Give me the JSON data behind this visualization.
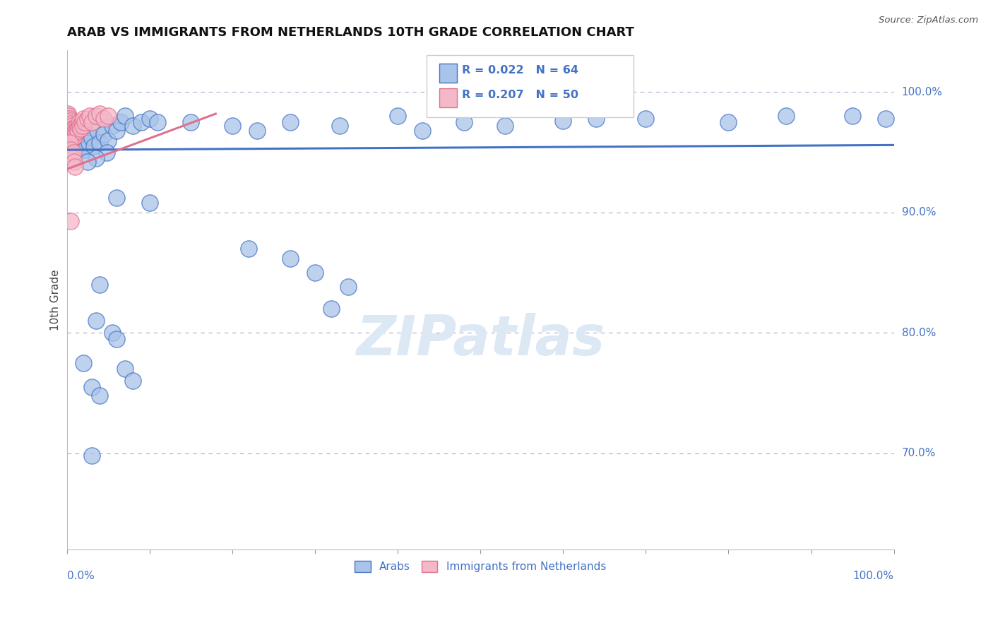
{
  "title": "ARAB VS IMMIGRANTS FROM NETHERLANDS 10TH GRADE CORRELATION CHART",
  "source": "Source: ZipAtlas.com",
  "ylabel": "10th Grade",
  "legend_label_blue": "Arabs",
  "legend_label_pink": "Immigrants from Netherlands",
  "blue_fill": "#a8c4e8",
  "blue_edge": "#4472c4",
  "pink_fill": "#f4b8c8",
  "pink_edge": "#e07090",
  "blue_line": "#4472c4",
  "pink_line": "#e07090",
  "grid_color": "#aaaacc",
  "label_color": "#4472c4",
  "watermark_color": "#dde8f5",
  "blue_scatter": [
    [
      0.001,
      0.98
    ],
    [
      0.002,
      0.975
    ],
    [
      0.002,
      0.972
    ],
    [
      0.003,
      0.978
    ],
    [
      0.003,
      0.97
    ],
    [
      0.004,
      0.975
    ],
    [
      0.004,
      0.968
    ],
    [
      0.005,
      0.972
    ],
    [
      0.005,
      0.965
    ],
    [
      0.006,
      0.97
    ],
    [
      0.006,
      0.963
    ],
    [
      0.007,
      0.968
    ],
    [
      0.007,
      0.96
    ],
    [
      0.008,
      0.972
    ],
    [
      0.008,
      0.958
    ],
    [
      0.009,
      0.966
    ],
    [
      0.01,
      0.962
    ],
    [
      0.011,
      0.958
    ],
    [
      0.012,
      0.965
    ],
    [
      0.013,
      0.955
    ],
    [
      0.014,
      0.96
    ],
    [
      0.015,
      0.968
    ],
    [
      0.015,
      0.955
    ],
    [
      0.016,
      0.962
    ],
    [
      0.017,
      0.958
    ],
    [
      0.018,
      0.97
    ],
    [
      0.019,
      0.955
    ],
    [
      0.02,
      0.965
    ],
    [
      0.021,
      0.958
    ],
    [
      0.022,
      0.952
    ],
    [
      0.025,
      0.965
    ],
    [
      0.027,
      0.958
    ],
    [
      0.03,
      0.962
    ],
    [
      0.033,
      0.955
    ],
    [
      0.037,
      0.968
    ],
    [
      0.04,
      0.958
    ],
    [
      0.045,
      0.965
    ],
    [
      0.05,
      0.96
    ],
    [
      0.055,
      0.972
    ],
    [
      0.06,
      0.968
    ],
    [
      0.065,
      0.975
    ],
    [
      0.07,
      0.98
    ],
    [
      0.08,
      0.972
    ],
    [
      0.09,
      0.975
    ],
    [
      0.1,
      0.978
    ],
    [
      0.11,
      0.975
    ],
    [
      0.15,
      0.975
    ],
    [
      0.2,
      0.972
    ],
    [
      0.23,
      0.968
    ],
    [
      0.27,
      0.975
    ],
    [
      0.33,
      0.972
    ],
    [
      0.4,
      0.98
    ],
    [
      0.43,
      0.968
    ],
    [
      0.48,
      0.975
    ],
    [
      0.53,
      0.972
    ],
    [
      0.6,
      0.976
    ],
    [
      0.64,
      0.978
    ],
    [
      0.7,
      0.978
    ],
    [
      0.8,
      0.975
    ],
    [
      0.87,
      0.98
    ],
    [
      0.95,
      0.98
    ],
    [
      0.99,
      0.978
    ],
    [
      0.048,
      0.95
    ],
    [
      0.035,
      0.945
    ],
    [
      0.025,
      0.942
    ],
    [
      0.06,
      0.912
    ],
    [
      0.1,
      0.908
    ],
    [
      0.22,
      0.87
    ],
    [
      0.27,
      0.862
    ],
    [
      0.3,
      0.85
    ],
    [
      0.34,
      0.838
    ],
    [
      0.32,
      0.82
    ],
    [
      0.04,
      0.84
    ],
    [
      0.035,
      0.81
    ],
    [
      0.055,
      0.8
    ],
    [
      0.06,
      0.795
    ],
    [
      0.07,
      0.77
    ],
    [
      0.08,
      0.76
    ],
    [
      0.02,
      0.775
    ],
    [
      0.03,
      0.755
    ],
    [
      0.04,
      0.748
    ],
    [
      0.03,
      0.698
    ]
  ],
  "pink_scatter": [
    [
      0.001,
      0.982
    ],
    [
      0.001,
      0.978
    ],
    [
      0.002,
      0.98
    ],
    [
      0.002,
      0.975
    ],
    [
      0.002,
      0.972
    ],
    [
      0.003,
      0.978
    ],
    [
      0.003,
      0.975
    ],
    [
      0.003,
      0.97
    ],
    [
      0.004,
      0.976
    ],
    [
      0.004,
      0.972
    ],
    [
      0.004,
      0.968
    ],
    [
      0.005,
      0.974
    ],
    [
      0.005,
      0.97
    ],
    [
      0.005,
      0.965
    ],
    [
      0.006,
      0.972
    ],
    [
      0.006,
      0.968
    ],
    [
      0.006,
      0.963
    ],
    [
      0.007,
      0.97
    ],
    [
      0.007,
      0.966
    ],
    [
      0.008,
      0.968
    ],
    [
      0.008,
      0.963
    ],
    [
      0.009,
      0.97
    ],
    [
      0.009,
      0.965
    ],
    [
      0.01,
      0.968
    ],
    [
      0.01,
      0.963
    ],
    [
      0.011,
      0.966
    ],
    [
      0.012,
      0.97
    ],
    [
      0.013,
      0.968
    ],
    [
      0.014,
      0.972
    ],
    [
      0.015,
      0.975
    ],
    [
      0.016,
      0.972
    ],
    [
      0.017,
      0.97
    ],
    [
      0.018,
      0.975
    ],
    [
      0.019,
      0.972
    ],
    [
      0.02,
      0.978
    ],
    [
      0.022,
      0.975
    ],
    [
      0.025,
      0.978
    ],
    [
      0.028,
      0.98
    ],
    [
      0.03,
      0.975
    ],
    [
      0.035,
      0.98
    ],
    [
      0.04,
      0.982
    ],
    [
      0.045,
      0.978
    ],
    [
      0.05,
      0.98
    ],
    [
      0.004,
      0.958
    ],
    [
      0.005,
      0.952
    ],
    [
      0.006,
      0.948
    ],
    [
      0.007,
      0.945
    ],
    [
      0.008,
      0.95
    ],
    [
      0.009,
      0.942
    ],
    [
      0.01,
      0.938
    ],
    [
      0.005,
      0.893
    ]
  ],
  "blue_trend_x": [
    0.0,
    1.0
  ],
  "blue_trend_y": [
    0.952,
    0.956
  ],
  "pink_trend_x": [
    0.0,
    0.18
  ],
  "pink_trend_y": [
    0.936,
    0.982
  ],
  "xlim": [
    0.0,
    1.0
  ],
  "ylim": [
    0.62,
    1.035
  ],
  "yticks": [
    1.0,
    0.9,
    0.8,
    0.7
  ],
  "ytick_labels": [
    "100.0%",
    "90.0%",
    "80.0%",
    "70.0%"
  ],
  "xtick_positions": [
    0.0,
    0.1,
    0.2,
    0.3,
    0.4,
    0.5,
    0.6,
    0.7,
    0.8,
    0.9,
    1.0
  ]
}
